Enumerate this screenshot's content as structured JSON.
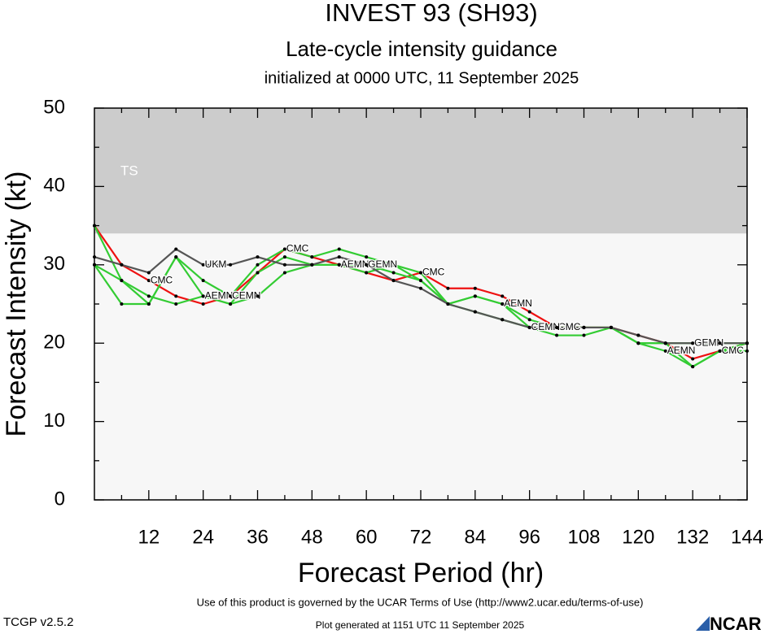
{
  "chart_data": {
    "type": "line",
    "title": "INVEST 93 (SH93)",
    "subtitle": "Late-cycle intensity guidance",
    "subtitle2": "initialized at 0000 UTC, 11 September 2025",
    "xlabel": "Forecast Period (hr)",
    "ylabel": "Forecast Intensity (kt)",
    "x": [
      0,
      6,
      12,
      18,
      24,
      30,
      36,
      42,
      48,
      54,
      60,
      66,
      72,
      78,
      84,
      90,
      96,
      102,
      108,
      114,
      120,
      126,
      132,
      138,
      144
    ],
    "series": [
      {
        "name": "CMC",
        "color": "#ee1111",
        "values": [
          35,
          30,
          28,
          26,
          25,
          26,
          29,
          32,
          31,
          30,
          29,
          28,
          29,
          27,
          27,
          26,
          24,
          22,
          22,
          22,
          21,
          20,
          18,
          19,
          20
        ]
      },
      {
        "name": "AEMN",
        "color": "#33cc33",
        "values": [
          30,
          28,
          26,
          25,
          26,
          25,
          29,
          31,
          30,
          30,
          29,
          30,
          28,
          25,
          26,
          25,
          23,
          22,
          22,
          22,
          20,
          19,
          17,
          19,
          20
        ]
      },
      {
        "name": "CEMN",
        "color": "#33cc33",
        "values": [
          30,
          25,
          25,
          31,
          28,
          26,
          30,
          32,
          31,
          32,
          31,
          30,
          29,
          25,
          24,
          23,
          22,
          21,
          21,
          22,
          20,
          20,
          17,
          19,
          19
        ]
      },
      {
        "name": "GEMN",
        "color": "#33cc33",
        "values": [
          35,
          28,
          25,
          31,
          26,
          25,
          26,
          29,
          30,
          30,
          30,
          29,
          28,
          25,
          26,
          25,
          22,
          22,
          22,
          22,
          20,
          20,
          20,
          20,
          20
        ]
      },
      {
        "name": "UKM",
        "color": "#555555",
        "values": [
          31,
          30,
          29,
          32,
          30,
          30,
          31,
          30,
          30,
          31,
          30,
          28,
          27,
          25,
          24,
          23,
          22,
          22,
          22,
          22,
          21,
          20,
          20,
          20,
          20
        ]
      }
    ],
    "bands": [
      {
        "label": "TS",
        "from": 34,
        "to": 50,
        "color": "#cccccc"
      }
    ],
    "plot_background": "#f7f7f7",
    "xlim": [
      0,
      144
    ],
    "xticks": [
      12,
      24,
      36,
      48,
      60,
      72,
      84,
      96,
      108,
      120,
      132,
      144
    ],
    "xminor_ticks": [
      6,
      18,
      30,
      42,
      54,
      66,
      78,
      90,
      102,
      114,
      126,
      138
    ],
    "ylim": [
      0,
      50
    ],
    "yticks": [
      0,
      10,
      20,
      30,
      40,
      50
    ],
    "yminor_ticks": [
      5,
      15,
      25,
      35,
      45
    ]
  },
  "footer": {
    "terms": "Use of this product is governed by the UCAR Terms of Use (http://www2.ucar.edu/terms-of-use)",
    "version": "TCGP v2.5.2",
    "generated": "Plot generated at 1151 UTC   11 September 2025",
    "logo": "NCAR"
  }
}
